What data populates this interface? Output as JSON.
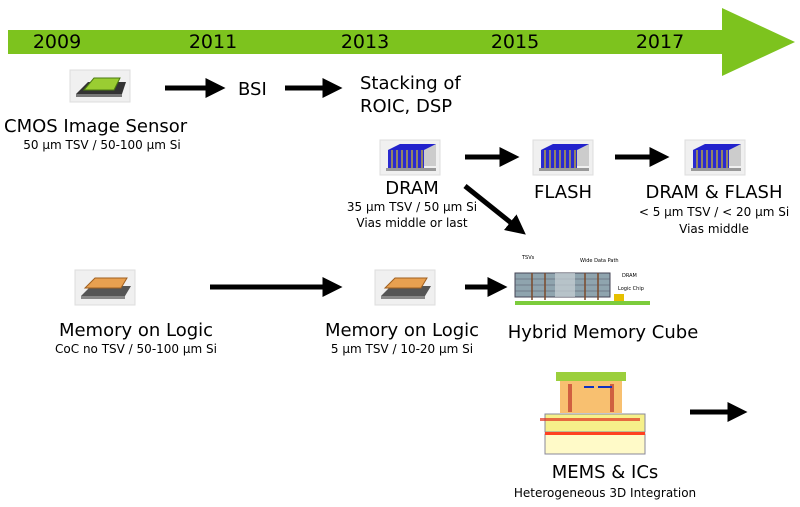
{
  "timeline": {
    "years": [
      "2009",
      "2011",
      "2013",
      "2015",
      "2017"
    ],
    "color": "#7dc31e"
  },
  "row1": {
    "cmos": {
      "title": "CMOS Image Sensor",
      "spec": "50 µm TSV / 50-100 µm Si"
    },
    "bsi": "BSI",
    "stacking": {
      "line1": "Stacking of",
      "line2": "ROIC, DSP"
    }
  },
  "row2": {
    "dram": {
      "title": "DRAM",
      "spec1": "35 µm TSV / 50 µm Si",
      "spec2": "Vias middle or last"
    },
    "flash": {
      "title": "FLASH"
    },
    "dram_flash": {
      "title": "DRAM & FLASH",
      "spec1": "< 5 µm TSV / < 20 µm Si",
      "spec2": "Vias middle"
    }
  },
  "row3": {
    "mol1": {
      "title": "Memory on Logic",
      "spec": "CoC no TSV / 50-100 µm Si"
    },
    "mol2": {
      "title": "Memory on Logic",
      "spec": "5 µm TSV / 10-20 µm Si"
    },
    "hmc": {
      "title": "Hybrid Memory Cube",
      "labels": {
        "tsvs": "TSVs",
        "wide": "Wide Data Path",
        "dram": "DRAM",
        "logic": "Logic Chip"
      }
    }
  },
  "row4": {
    "mems": {
      "title": "MEMS & ICs",
      "spec": "Heterogeneous 3D Integration"
    }
  }
}
